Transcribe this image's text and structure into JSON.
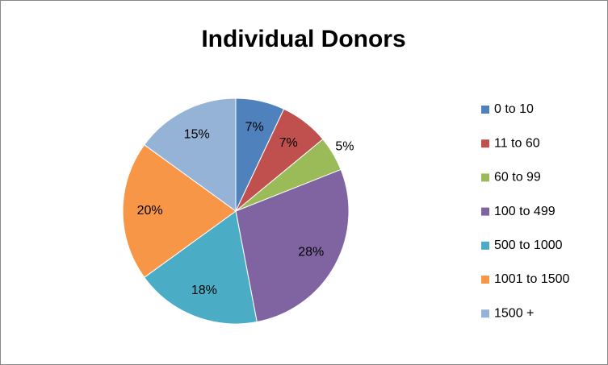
{
  "chart_data": {
    "type": "pie",
    "title": "Individual Donors",
    "categories": [
      "0 to 10",
      "11 to 60",
      "60 to 99",
      "100 to 499",
      "500 to 1000",
      "1001 to 1500",
      "1500 +"
    ],
    "values": [
      7,
      7,
      5,
      28,
      18,
      20,
      15
    ],
    "value_labels": [
      "7%",
      "7%",
      "5%",
      "28%",
      "18%",
      "20%",
      "15%"
    ],
    "colors": [
      "#4f81bd",
      "#c0504d",
      "#9bbb59",
      "#8064a2",
      "#4bacc6",
      "#f79646",
      "#95b3d7"
    ],
    "legend": "right"
  }
}
